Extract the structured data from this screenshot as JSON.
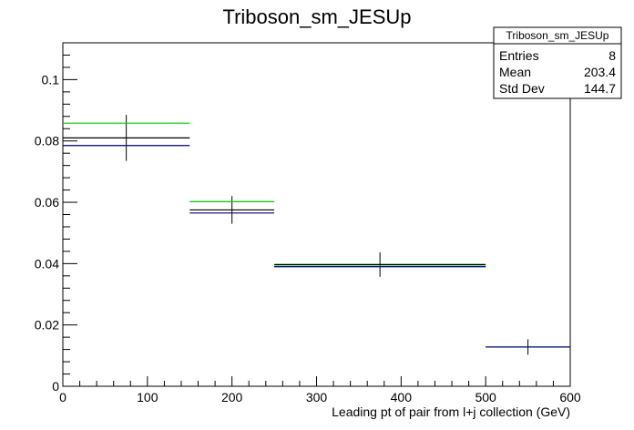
{
  "chart_data": {
    "type": "scatter",
    "title": "Triboson_sm_JESUp",
    "xlabel": "Leading pt of pair from l+j collection (GeV)",
    "ylabel": "",
    "xlim": [
      0,
      600
    ],
    "ylim": [
      0,
      0.112
    ],
    "x_ticks": [
      0,
      100,
      200,
      300,
      400,
      500,
      600
    ],
    "y_ticks": [
      0,
      0.02,
      0.04,
      0.06,
      0.08,
      0.1
    ],
    "x_tick_labels": [
      "0",
      "100",
      "200",
      "300",
      "400",
      "500",
      "600"
    ],
    "y_tick_labels": [
      "0",
      "0.02",
      "0.04",
      "0.06",
      "0.08",
      "0.1"
    ],
    "grid": false,
    "legend_position": "top-right",
    "stats_box": {
      "title": "Triboson_sm_JESUp",
      "rows": [
        {
          "label": "Entries",
          "value": "8"
        },
        {
          "label": "Mean",
          "value": "203.4"
        },
        {
          "label": "Std Dev",
          "value": "144.7"
        }
      ]
    },
    "series": [
      {
        "color": "#000000",
        "bins": [
          {
            "x0": 0,
            "x1": 150,
            "y": 0.081,
            "err": 0.0075
          },
          {
            "x0": 150,
            "x1": 250,
            "y": 0.0575,
            "err": 0.0045
          },
          {
            "x0": 250,
            "x1": 500,
            "y": 0.0397,
            "err": 0.004
          },
          {
            "x0": 500,
            "x1": 600,
            "y": 0.0128,
            "err": 0.0025
          }
        ]
      },
      {
        "color": "#00cc00",
        "bins": [
          {
            "x0": 0,
            "x1": 150,
            "y": 0.0858,
            "err": 0
          },
          {
            "x0": 150,
            "x1": 250,
            "y": 0.0602,
            "err": 0
          },
          {
            "x0": 250,
            "x1": 500,
            "y": 0.0392,
            "err": 0
          },
          {
            "x0": 500,
            "x1": 600,
            "y": 0.0128,
            "err": 0
          }
        ]
      },
      {
        "color": "#000080",
        "bins": [
          {
            "x0": 0,
            "x1": 150,
            "y": 0.0785,
            "err": 0
          },
          {
            "x0": 150,
            "x1": 250,
            "y": 0.0565,
            "err": 0
          },
          {
            "x0": 250,
            "x1": 500,
            "y": 0.039,
            "err": 0
          },
          {
            "x0": 500,
            "x1": 600,
            "y": 0.0128,
            "err": 0
          }
        ]
      }
    ]
  }
}
